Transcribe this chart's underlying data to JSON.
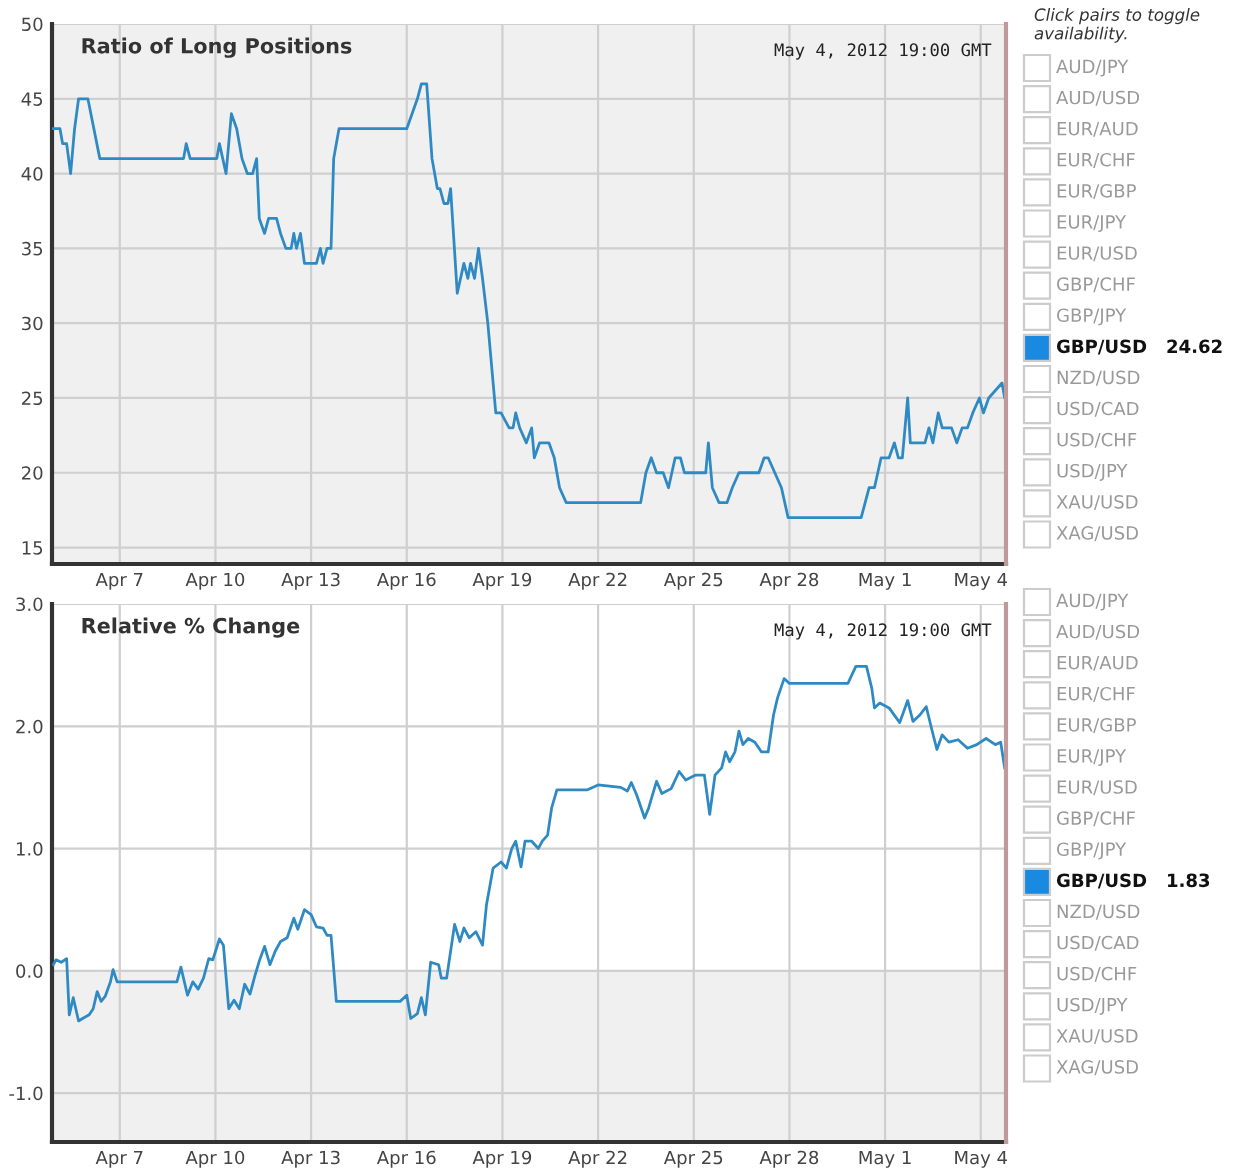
{
  "chart_data": [
    {
      "type": "line",
      "title": "Ratio of Long Positions",
      "annotations": [
        "May 4, 2012 19:00 GMT"
      ],
      "grid": true,
      "xlim": [
        "2012-04-04T21:00",
        "2012-05-04T19:00"
      ],
      "xticks": [
        {
          "value": "2012-04-07",
          "label": "Apr 7"
        },
        {
          "value": "2012-04-10",
          "label": "Apr 10"
        },
        {
          "value": "2012-04-13",
          "label": "Apr 13"
        },
        {
          "value": "2012-04-16",
          "label": "Apr 16"
        },
        {
          "value": "2012-04-19",
          "label": "Apr 19"
        },
        {
          "value": "2012-04-22",
          "label": "Apr 22"
        },
        {
          "value": "2012-04-25",
          "label": "Apr 25"
        },
        {
          "value": "2012-04-28",
          "label": "Apr 28"
        },
        {
          "value": "2012-05-01",
          "label": "May 1"
        },
        {
          "value": "2012-05-04",
          "label": "May 4"
        }
      ],
      "ylim": [
        13.9,
        50
      ],
      "yticks": [
        15,
        20,
        25,
        30,
        35,
        40,
        45,
        50
      ],
      "bands": [
        {
          "axis": "y",
          "from": 13.9,
          "to": 50,
          "color": "#f0f0f0"
        }
      ],
      "ref_lines": [
        {
          "axis": "x",
          "value": "2012-05-04T19:00",
          "color": "#c09a9a"
        }
      ],
      "series": [
        {
          "color": "#2f8ac4",
          "x": [
            "2012-04-04T22:00",
            "2012-04-05T03:00",
            "2012-04-05T05:00",
            "2012-04-05T08:00",
            "2012-04-05T11:00",
            "2012-04-05T14:00",
            "2012-04-05T17:00",
            "2012-04-06T00:00",
            "2012-04-06T09:00",
            "2012-04-09T00:00",
            "2012-04-09T02:00",
            "2012-04-09T05:00",
            "2012-04-10T01:00",
            "2012-04-10T03:00",
            "2012-04-10T08:00",
            "2012-04-10T12:00",
            "2012-04-10T16:00",
            "2012-04-10T20:00",
            "2012-04-11T00:00",
            "2012-04-11T04:00",
            "2012-04-11T07:00",
            "2012-04-11T09:00",
            "2012-04-11T13:00",
            "2012-04-11T16:00",
            "2012-04-11T22:00",
            "2012-04-12T01:00",
            "2012-04-12T05:00",
            "2012-04-12T09:00",
            "2012-04-12T11:00",
            "2012-04-12T13:00",
            "2012-04-12T16:00",
            "2012-04-12T19:00",
            "2012-04-13T04:00",
            "2012-04-13T07:00",
            "2012-04-13T09:00",
            "2012-04-13T12:00",
            "2012-04-13T15:00",
            "2012-04-13T17:00",
            "2012-04-13T21:00",
            "2012-04-16T00:00",
            "2012-04-16T04:00",
            "2012-04-16T08:00",
            "2012-04-16T11:00",
            "2012-04-16T15:00",
            "2012-04-16T19:00",
            "2012-04-16T23:00",
            "2012-04-17T01:00",
            "2012-04-17T04:00",
            "2012-04-17T07:00",
            "2012-04-17T09:00",
            "2012-04-17T14:00",
            "2012-04-17T19:00",
            "2012-04-17T22:00",
            "2012-04-18T00:00",
            "2012-04-18T03:00",
            "2012-04-18T06:00",
            "2012-04-18T09:00",
            "2012-04-18T13:00",
            "2012-04-18T19:00",
            "2012-04-18T23:00",
            "2012-04-19T05:00",
            "2012-04-19T08:00",
            "2012-04-19T10:00",
            "2012-04-19T13:00",
            "2012-04-19T18:00",
            "2012-04-19T22:00",
            "2012-04-20T00:00",
            "2012-04-20T04:00",
            "2012-04-20T11:00",
            "2012-04-20T15:00",
            "2012-04-20T19:00",
            "2012-04-21T00:00",
            "2012-04-23T08:00",
            "2012-04-23T12:00",
            "2012-04-23T16:00",
            "2012-04-23T20:00",
            "2012-04-24T01:00",
            "2012-04-24T05:00",
            "2012-04-24T10:00",
            "2012-04-24T14:00",
            "2012-04-24T17:00",
            "2012-04-25T09:00",
            "2012-04-25T11:00",
            "2012-04-25T14:00",
            "2012-04-25T19:00",
            "2012-04-26T01:00",
            "2012-04-26T05:00",
            "2012-04-26T10:00",
            "2012-04-27T01:00",
            "2012-04-27T05:00",
            "2012-04-27T08:00",
            "2012-04-27T13:00",
            "2012-04-27T18:00",
            "2012-04-27T23:00",
            "2012-04-30T06:00",
            "2012-04-30T09:00",
            "2012-04-30T12:00",
            "2012-04-30T16:00",
            "2012-04-30T21:00",
            "2012-05-01T03:00",
            "2012-05-01T07:00",
            "2012-05-01T10:00",
            "2012-05-01T13:00",
            "2012-05-01T17:00",
            "2012-05-01T19:00",
            "2012-05-02T06:00",
            "2012-05-02T09:00",
            "2012-05-02T12:00",
            "2012-05-02T16:00",
            "2012-05-02T19:00",
            "2012-05-03T02:00",
            "2012-05-03T06:00",
            "2012-05-03T10:00",
            "2012-05-03T14:00",
            "2012-05-03T18:00",
            "2012-05-03T23:00",
            "2012-05-04T02:00",
            "2012-05-04T06:00",
            "2012-05-04T16:00",
            "2012-05-04T18:00",
            "2012-05-04T19:00"
          ],
          "values": [
            43,
            43,
            42,
            42,
            40,
            43,
            45,
            45,
            41,
            41,
            42,
            41,
            41,
            42,
            40,
            44,
            43,
            41,
            40,
            40,
            41,
            37,
            36,
            37,
            37,
            36,
            35,
            35,
            36,
            35,
            36,
            34,
            34,
            35,
            34,
            35,
            35,
            41,
            43,
            43,
            44,
            45,
            46,
            46,
            41,
            39,
            39,
            38,
            38,
            39,
            32,
            34,
            33,
            34,
            33,
            35,
            33,
            30,
            24,
            24,
            23,
            23,
            24,
            23,
            22,
            23,
            21,
            22,
            22,
            21,
            19,
            18,
            18,
            20,
            21,
            20,
            20,
            19,
            21,
            21,
            20,
            20,
            22,
            19,
            18,
            18,
            19,
            20,
            20,
            21,
            21,
            20,
            19,
            17,
            17,
            18,
            19,
            19,
            21,
            21,
            22,
            21,
            21,
            25,
            22,
            22,
            23,
            22,
            24,
            23,
            23,
            22,
            23,
            23,
            24,
            25,
            24,
            25,
            26,
            25,
            25
          ]
        }
      ]
    },
    {
      "type": "other",
      "title": "Click pairs to toggle availability.",
      "categories": [
        "AUD/JPY",
        "AUD/USD",
        "EUR/AUD",
        "EUR/CHF",
        "EUR/GBP",
        "EUR/JPY",
        "EUR/USD",
        "GBP/CHF",
        "GBP/JPY",
        "GBP/USD",
        "NZD/USD",
        "USD/CAD",
        "USD/CHF",
        "USD/JPY",
        "XAU/USD",
        "XAG/USD"
      ],
      "colors": [
        null,
        null,
        null,
        null,
        null,
        null,
        null,
        null,
        null,
        "#1a8ae0",
        null,
        null,
        null,
        null,
        null,
        null
      ],
      "annotations": [
        "24.62"
      ]
    },
    {
      "type": "line",
      "title": "Relative % Change",
      "annotations": [
        "May 4, 2012 19:00 GMT"
      ],
      "grid": true,
      "xlim": [
        "2012-04-04T21:00",
        "2012-05-04T19:00"
      ],
      "xticks": [
        {
          "value": "2012-04-07",
          "label": "Apr 7"
        },
        {
          "value": "2012-04-10",
          "label": "Apr 10"
        },
        {
          "value": "2012-04-13",
          "label": "Apr 13"
        },
        {
          "value": "2012-04-16",
          "label": "Apr 16"
        },
        {
          "value": "2012-04-19",
          "label": "Apr 19"
        },
        {
          "value": "2012-04-22",
          "label": "Apr 22"
        },
        {
          "value": "2012-04-25",
          "label": "Apr 25"
        },
        {
          "value": "2012-04-28",
          "label": "Apr 28"
        },
        {
          "value": "2012-05-01",
          "label": "May 1"
        },
        {
          "value": "2012-05-04",
          "label": "May 4"
        }
      ],
      "ylim": [
        -1.4,
        3.0
      ],
      "yticks": [
        {
          "value": -1,
          "label": "-1.0"
        },
        {
          "value": 0,
          "label": "0.0"
        },
        {
          "value": 1,
          "label": "1.0"
        },
        {
          "value": 2,
          "label": "2.0"
        },
        {
          "value": 3,
          "label": "3.0"
        }
      ],
      "bands": [
        {
          "axis": "y",
          "from": -1.4,
          "to": 0,
          "color": "#f0f0f0"
        }
      ],
      "ref_lines": [
        {
          "axis": "x",
          "value": "2012-05-04T19:00",
          "color": "#c09a9a"
        }
      ],
      "series": [
        {
          "color": "#2f8ac4",
          "x": [
            "2012-04-04T22:00",
            "2012-04-05T00:00",
            "2012-04-05T04:00",
            "2012-04-05T08:00",
            "2012-04-05T10:00",
            "2012-04-05T13:00",
            "2012-04-05T17:00",
            "2012-04-05T20:00",
            "2012-04-06T01:00",
            "2012-04-06T04:00",
            "2012-04-06T07:00",
            "2012-04-06T10:00",
            "2012-04-06T13:00",
            "2012-04-06T17:00",
            "2012-04-06T19:00",
            "2012-04-06T22:00",
            "2012-04-08T19:00",
            "2012-04-08T22:00",
            "2012-04-09T03:00",
            "2012-04-09T07:00",
            "2012-04-09T11:00",
            "2012-04-09T15:00",
            "2012-04-09T19:00",
            "2012-04-09T22:00",
            "2012-04-10T03:00",
            "2012-04-10T06:00",
            "2012-04-10T10:00",
            "2012-04-10T14:00",
            "2012-04-10T18:00",
            "2012-04-10T22:00",
            "2012-04-11T02:00",
            "2012-04-11T06:00",
            "2012-04-11T09:00",
            "2012-04-11T13:00",
            "2012-04-11T17:00",
            "2012-04-11T21:00",
            "2012-04-12T01:00",
            "2012-04-12T06:00",
            "2012-04-12T11:00",
            "2012-04-12T14:00",
            "2012-04-12T19:00",
            "2012-04-13T00:00",
            "2012-04-13T04:00",
            "2012-04-13T09:00",
            "2012-04-13T12:00",
            "2012-04-13T15:00",
            "2012-04-13T19:00",
            "2012-04-15T19:00",
            "2012-04-16T00:00",
            "2012-04-16T03:00",
            "2012-04-16T08:00",
            "2012-04-16T11:00",
            "2012-04-16T14:00",
            "2012-04-16T18:00",
            "2012-04-17T00:00",
            "2012-04-17T02:00",
            "2012-04-17T06:00",
            "2012-04-17T12:00",
            "2012-04-17T16:00",
            "2012-04-17T19:00",
            "2012-04-17T23:00",
            "2012-04-18T04:00",
            "2012-04-18T09:00",
            "2012-04-18T12:00",
            "2012-04-18T17:00",
            "2012-04-18T23:00",
            "2012-04-19T03:00",
            "2012-04-19T07:00",
            "2012-04-19T10:00",
            "2012-04-19T14:00",
            "2012-04-19T17:00",
            "2012-04-19T22:00",
            "2012-04-20T03:00",
            "2012-04-20T06:00",
            "2012-04-20T10:00",
            "2012-04-20T13:00",
            "2012-04-20T17:00",
            "2012-04-21T16:00",
            "2012-04-22T00:00",
            "2012-04-22T17:00",
            "2012-04-22T22:00",
            "2012-04-23T01:00",
            "2012-04-23T05:00",
            "2012-04-23T11:00",
            "2012-04-23T14:00",
            "2012-04-23T20:00",
            "2012-04-24T00:00",
            "2012-04-24T07:00",
            "2012-04-24T13:00",
            "2012-04-24T18:00",
            "2012-04-25T01:00",
            "2012-04-25T08:00",
            "2012-04-25T12:00",
            "2012-04-25T16:00",
            "2012-04-25T21:00",
            "2012-04-26T00:00",
            "2012-04-26T03:00",
            "2012-04-26T07:00",
            "2012-04-26T10:00",
            "2012-04-26T13:00",
            "2012-04-26T17:00",
            "2012-04-26T22:00",
            "2012-04-27T03:00",
            "2012-04-27T08:00",
            "2012-04-27T12:00",
            "2012-04-27T15:00",
            "2012-04-27T20:00",
            "2012-04-28T00:00",
            "2012-04-29T20:00",
            "2012-04-29T23:00",
            "2012-04-30T02:00",
            "2012-04-30T10:00",
            "2012-04-30T14:00",
            "2012-04-30T16:00",
            "2012-04-30T20:00",
            "2012-05-01T03:00",
            "2012-05-01T11:00",
            "2012-05-01T17:00",
            "2012-05-01T21:00",
            "2012-05-02T02:00",
            "2012-05-02T07:00",
            "2012-05-02T11:00",
            "2012-05-02T15:00",
            "2012-05-02T19:00",
            "2012-05-03T00:00",
            "2012-05-03T07:00",
            "2012-05-03T14:00",
            "2012-05-03T21:00",
            "2012-05-04T04:00",
            "2012-05-04T11:00",
            "2012-05-04T15:00",
            "2012-05-04T18:00"
          ],
          "values": [
            0.05,
            0.09,
            0.07,
            0.1,
            -0.36,
            -0.22,
            -0.41,
            -0.39,
            -0.36,
            -0.31,
            -0.17,
            -0.25,
            -0.21,
            -0.09,
            0.01,
            -0.09,
            -0.09,
            0.03,
            -0.2,
            -0.09,
            -0.15,
            -0.06,
            0.1,
            0.09,
            0.26,
            0.21,
            -0.31,
            -0.24,
            -0.31,
            -0.11,
            -0.19,
            -0.03,
            0.08,
            0.2,
            0.05,
            0.16,
            0.24,
            0.27,
            0.43,
            0.34,
            0.5,
            0.46,
            0.36,
            0.35,
            0.29,
            0.29,
            -0.25,
            -0.25,
            -0.2,
            -0.39,
            -0.35,
            -0.22,
            -0.36,
            0.07,
            0.05,
            -0.06,
            -0.06,
            0.38,
            0.24,
            0.35,
            0.27,
            0.32,
            0.21,
            0.54,
            0.84,
            0.89,
            0.84,
            1.0,
            1.06,
            0.85,
            1.06,
            1.06,
            1.0,
            1.06,
            1.11,
            1.33,
            1.48,
            1.48,
            1.52,
            1.5,
            1.47,
            1.54,
            1.44,
            1.25,
            1.33,
            1.55,
            1.45,
            1.49,
            1.63,
            1.56,
            1.6,
            1.6,
            1.28,
            1.6,
            1.66,
            1.79,
            1.71,
            1.79,
            1.96,
            1.85,
            1.9,
            1.87,
            1.79,
            1.79,
            2.09,
            2.23,
            2.39,
            2.35,
            2.35,
            2.42,
            2.49,
            2.49,
            2.31,
            2.15,
            2.19,
            2.15,
            2.03,
            2.21,
            2.04,
            2.09,
            2.16,
            1.98,
            1.81,
            1.93,
            1.87,
            1.89,
            1.82,
            1.85,
            1.9,
            1.85,
            1.87,
            1.66
          ]
        }
      ]
    },
    {
      "type": "other",
      "categories": [
        "AUD/JPY",
        "AUD/USD",
        "EUR/AUD",
        "EUR/CHF",
        "EUR/GBP",
        "EUR/JPY",
        "EUR/USD",
        "GBP/CHF",
        "GBP/JPY",
        "GBP/USD",
        "NZD/USD",
        "USD/CAD",
        "USD/CHF",
        "USD/JPY",
        "XAU/USD",
        "XAG/USD"
      ],
      "colors": [
        null,
        null,
        null,
        null,
        null,
        null,
        null,
        null,
        null,
        "#1a8ae0",
        null,
        null,
        null,
        null,
        null,
        null
      ],
      "annotations": [
        "1.83"
      ]
    }
  ]
}
